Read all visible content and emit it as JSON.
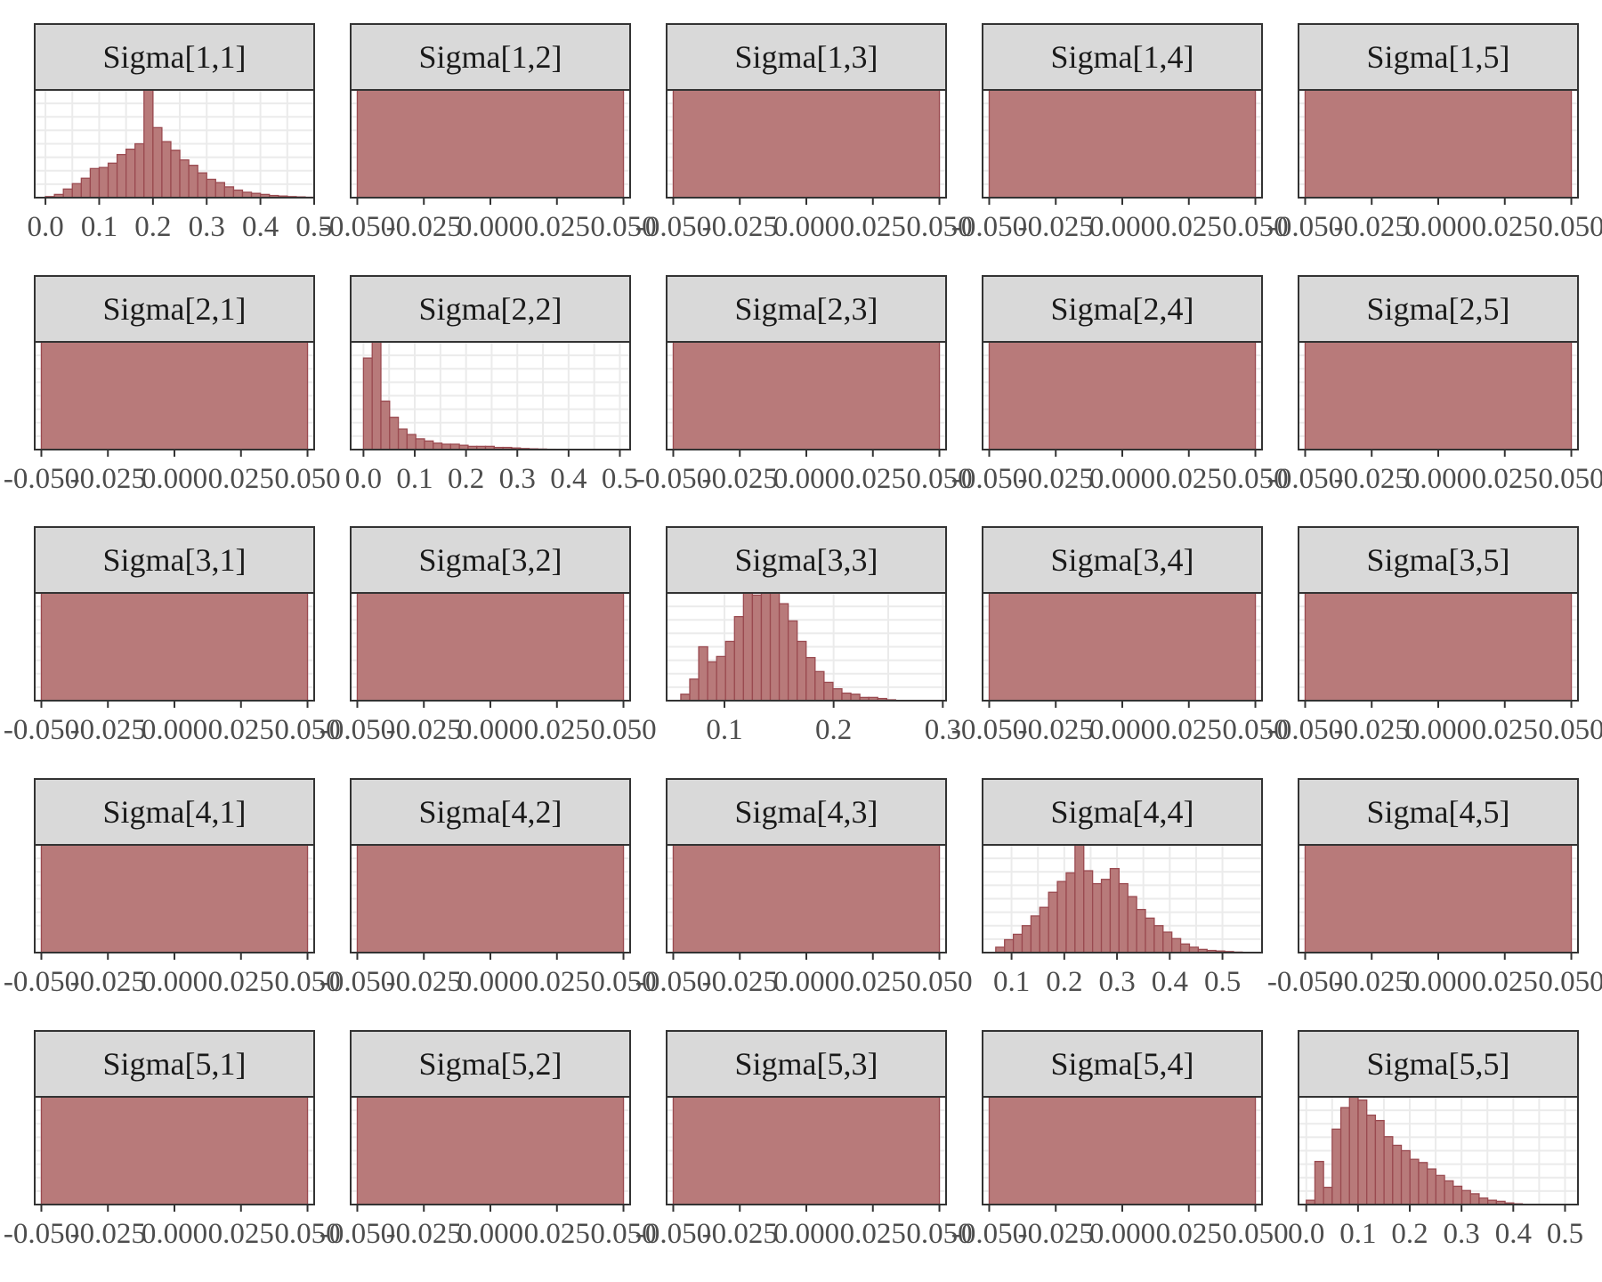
{
  "figure": {
    "bar_fill": "#b87a7a",
    "bar_stroke": "#9a4a50",
    "strip_fill": "#d9d9d9",
    "frame_stroke": "#333333",
    "grid_color": "#ebebeb"
  },
  "chart_data": [
    {
      "type": "bar",
      "title": "Sigma[1,1]",
      "xlim": [
        -0.02,
        0.5
      ],
      "xticks": [
        0.0,
        0.1,
        0.2,
        0.3,
        0.4,
        0.5
      ],
      "xtick_labels": [
        "0.0",
        "0.1",
        "0.2",
        "0.3",
        "0.4",
        "0.5"
      ],
      "bin_start": 0.0,
      "bin_width": 0.016667,
      "values": [
        1,
        3,
        8,
        13,
        18,
        27,
        28,
        32,
        40,
        45,
        50,
        100,
        65,
        52,
        44,
        35,
        30,
        23,
        17,
        14,
        10,
        7,
        5,
        4,
        3,
        2,
        1.5,
        1,
        0.7,
        0.4
      ]
    },
    {
      "type": "bar",
      "title": "Sigma[1,2]",
      "xlim": [
        -0.0525,
        0.0525
      ],
      "xticks": [
        -0.05,
        -0.025,
        0.0,
        0.025,
        0.05
      ],
      "xtick_labels": [
        "-0.050",
        "-0.025",
        "0.000",
        "0.025",
        "0.050"
      ],
      "values": [
        1
      ]
    },
    {
      "type": "bar",
      "title": "Sigma[1,3]",
      "xlim": [
        -0.0525,
        0.0525
      ],
      "xticks": [
        -0.05,
        -0.025,
        0.0,
        0.025,
        0.05
      ],
      "xtick_labels": [
        "-0.050",
        "-0.025",
        "0.000",
        "0.025",
        "0.050"
      ],
      "values": [
        1
      ]
    },
    {
      "type": "bar",
      "title": "Sigma[1,4]",
      "xlim": [
        -0.0525,
        0.0525
      ],
      "xticks": [
        -0.05,
        -0.025,
        0.0,
        0.025,
        0.05
      ],
      "xtick_labels": [
        "-0.050",
        "-0.025",
        "0.000",
        "0.025",
        "0.050"
      ],
      "values": [
        1
      ]
    },
    {
      "type": "bar",
      "title": "Sigma[1,5]",
      "xlim": [
        -0.0525,
        0.0525
      ],
      "xticks": [
        -0.05,
        -0.025,
        0.0,
        0.025,
        0.05
      ],
      "xtick_labels": [
        "-0.050",
        "-0.025",
        "0.000",
        "0.025",
        "0.050"
      ],
      "values": [
        1
      ]
    },
    {
      "type": "bar",
      "title": "Sigma[2,1]",
      "xlim": [
        -0.0525,
        0.0525
      ],
      "xticks": [
        -0.05,
        -0.025,
        0.0,
        0.025,
        0.05
      ],
      "xtick_labels": [
        "-0.050",
        "-0.025",
        "0.000",
        "0.025",
        "0.050"
      ],
      "values": [
        1
      ]
    },
    {
      "type": "bar",
      "title": "Sigma[2,2]",
      "xlim": [
        -0.025,
        0.52
      ],
      "xticks": [
        0.0,
        0.1,
        0.2,
        0.3,
        0.4,
        0.5
      ],
      "xtick_labels": [
        "0.0",
        "0.1",
        "0.2",
        "0.3",
        "0.4",
        "0.5"
      ],
      "bin_start": 0.0,
      "bin_width": 0.017,
      "values": [
        85,
        100,
        45,
        30,
        19,
        14,
        10,
        8,
        6,
        5,
        5,
        4,
        3,
        3,
        3,
        2,
        2,
        1.5,
        1,
        0.7,
        0.5,
        0.3,
        0.2,
        0.1
      ]
    },
    {
      "type": "bar",
      "title": "Sigma[2,3]",
      "xlim": [
        -0.0525,
        0.0525
      ],
      "xticks": [
        -0.05,
        -0.025,
        0.0,
        0.025,
        0.05
      ],
      "xtick_labels": [
        "-0.050",
        "-0.025",
        "0.000",
        "0.025",
        "0.050"
      ],
      "values": [
        1
      ]
    },
    {
      "type": "bar",
      "title": "Sigma[2,4]",
      "xlim": [
        -0.0525,
        0.0525
      ],
      "xticks": [
        -0.05,
        -0.025,
        0.0,
        0.025,
        0.05
      ],
      "xtick_labels": [
        "-0.050",
        "-0.025",
        "0.000",
        "0.025",
        "0.050"
      ],
      "values": [
        1
      ]
    },
    {
      "type": "bar",
      "title": "Sigma[2,5]",
      "xlim": [
        -0.0525,
        0.0525
      ],
      "xticks": [
        -0.05,
        -0.025,
        0.0,
        0.025,
        0.05
      ],
      "xtick_labels": [
        "-0.050",
        "-0.025",
        "0.000",
        "0.025",
        "0.050"
      ],
      "values": [
        1
      ]
    },
    {
      "type": "bar",
      "title": "Sigma[3,1]",
      "xlim": [
        -0.0525,
        0.0525
      ],
      "xticks": [
        -0.05,
        -0.025,
        0.0,
        0.025,
        0.05
      ],
      "xtick_labels": [
        "-0.050",
        "-0.025",
        "0.000",
        "0.025",
        "0.050"
      ],
      "values": [
        1
      ]
    },
    {
      "type": "bar",
      "title": "Sigma[3,2]",
      "xlim": [
        -0.0525,
        0.0525
      ],
      "xticks": [
        -0.05,
        -0.025,
        0.0,
        0.025,
        0.05
      ],
      "xtick_labels": [
        "-0.050",
        "-0.025",
        "0.000",
        "0.025",
        "0.050"
      ],
      "values": [
        1
      ]
    },
    {
      "type": "bar",
      "title": "Sigma[3,3]",
      "xlim": [
        0.047,
        0.303
      ],
      "xticks": [
        0.1,
        0.2,
        0.3
      ],
      "xtick_labels": [
        "0.1",
        "0.2",
        "0.3"
      ],
      "bin_start": 0.06,
      "bin_width": 0.0082,
      "values": [
        6,
        20,
        50,
        36,
        41,
        55,
        78,
        100,
        98,
        100,
        100,
        90,
        74,
        55,
        40,
        27,
        17,
        11,
        7,
        6,
        3,
        3,
        2,
        0.8
      ]
    },
    {
      "type": "bar",
      "title": "Sigma[3,4]",
      "xlim": [
        -0.0525,
        0.0525
      ],
      "xticks": [
        -0.05,
        -0.025,
        0.0,
        0.025,
        0.05
      ],
      "xtick_labels": [
        "-0.050",
        "-0.025",
        "0.000",
        "0.025",
        "0.050"
      ],
      "values": [
        1
      ]
    },
    {
      "type": "bar",
      "title": "Sigma[3,5]",
      "xlim": [
        -0.0525,
        0.0525
      ],
      "xticks": [
        -0.05,
        -0.025,
        0.0,
        0.025,
        0.05
      ],
      "xtick_labels": [
        "-0.050",
        "-0.025",
        "0.000",
        "0.025",
        "0.050"
      ],
      "values": [
        1
      ]
    },
    {
      "type": "bar",
      "title": "Sigma[4,1]",
      "xlim": [
        -0.0525,
        0.0525
      ],
      "xticks": [
        -0.05,
        -0.025,
        0.0,
        0.025,
        0.05
      ],
      "xtick_labels": [
        "-0.050",
        "-0.025",
        "0.000",
        "0.025",
        "0.050"
      ],
      "values": [
        1
      ]
    },
    {
      "type": "bar",
      "title": "Sigma[4,2]",
      "xlim": [
        -0.0525,
        0.0525
      ],
      "xticks": [
        -0.05,
        -0.025,
        0.0,
        0.025,
        0.05
      ],
      "xtick_labels": [
        "-0.050",
        "-0.025",
        "0.000",
        "0.025",
        "0.050"
      ],
      "values": [
        1
      ]
    },
    {
      "type": "bar",
      "title": "Sigma[4,3]",
      "xlim": [
        -0.0525,
        0.0525
      ],
      "xticks": [
        -0.05,
        -0.025,
        0.0,
        0.025,
        0.05
      ],
      "xtick_labels": [
        "-0.050",
        "-0.025",
        "0.000",
        "0.025",
        "0.050"
      ],
      "values": [
        1
      ]
    },
    {
      "type": "bar",
      "title": "Sigma[4,4]",
      "xlim": [
        0.045,
        0.575
      ],
      "xticks": [
        0.1,
        0.2,
        0.3,
        0.4,
        0.5
      ],
      "xtick_labels": [
        "0.1",
        "0.2",
        "0.3",
        "0.4",
        "0.5"
      ],
      "bin_start": 0.07,
      "bin_width": 0.0167,
      "values": [
        5,
        12,
        17,
        25,
        34,
        42,
        56,
        66,
        74,
        100,
        76,
        64,
        68,
        78,
        64,
        52,
        40,
        32,
        25,
        19,
        13,
        8,
        5,
        3,
        2,
        1.5,
        1,
        0.5
      ]
    },
    {
      "type": "bar",
      "title": "Sigma[4,5]",
      "xlim": [
        -0.0525,
        0.0525
      ],
      "xticks": [
        -0.05,
        -0.025,
        0.0,
        0.025,
        0.05
      ],
      "xtick_labels": [
        "-0.050",
        "-0.025",
        "0.000",
        "0.025",
        "0.050"
      ],
      "values": [
        1
      ]
    },
    {
      "type": "bar",
      "title": "Sigma[5,1]",
      "xlim": [
        -0.0525,
        0.0525
      ],
      "xticks": [
        -0.05,
        -0.025,
        0.0,
        0.025,
        0.05
      ],
      "xtick_labels": [
        "-0.050",
        "-0.025",
        "0.000",
        "0.025",
        "0.050"
      ],
      "values": [
        1
      ]
    },
    {
      "type": "bar",
      "title": "Sigma[5,2]",
      "xlim": [
        -0.0525,
        0.0525
      ],
      "xticks": [
        -0.05,
        -0.025,
        0.0,
        0.025,
        0.05
      ],
      "xtick_labels": [
        "-0.050",
        "-0.025",
        "0.000",
        "0.025",
        "0.050"
      ],
      "values": [
        1
      ]
    },
    {
      "type": "bar",
      "title": "Sigma[5,3]",
      "xlim": [
        -0.0525,
        0.0525
      ],
      "xticks": [
        -0.05,
        -0.025,
        0.0,
        0.025,
        0.05
      ],
      "xtick_labels": [
        "-0.050",
        "-0.025",
        "0.000",
        "0.025",
        "0.050"
      ],
      "values": [
        1
      ]
    },
    {
      "type": "bar",
      "title": "Sigma[5,4]",
      "xlim": [
        -0.0525,
        0.0525
      ],
      "xticks": [
        -0.05,
        -0.025,
        0.0,
        0.025,
        0.05
      ],
      "xtick_labels": [
        "-0.050",
        "-0.025",
        "0.000",
        "0.025",
        "0.050"
      ],
      "values": [
        1
      ]
    },
    {
      "type": "bar",
      "title": "Sigma[5,5]",
      "xlim": [
        -0.015,
        0.525
      ],
      "xticks": [
        0.0,
        0.1,
        0.2,
        0.3,
        0.4,
        0.5
      ],
      "xtick_labels": [
        "0.0",
        "0.1",
        "0.2",
        "0.3",
        "0.4",
        "0.5"
      ],
      "bin_start": 0.0,
      "bin_width": 0.0167,
      "values": [
        4,
        40,
        16,
        70,
        90,
        100,
        97,
        83,
        78,
        63,
        55,
        50,
        42,
        39,
        33,
        27,
        22,
        17,
        13,
        10,
        6,
        4,
        3,
        1.5,
        0.7
      ]
    }
  ]
}
